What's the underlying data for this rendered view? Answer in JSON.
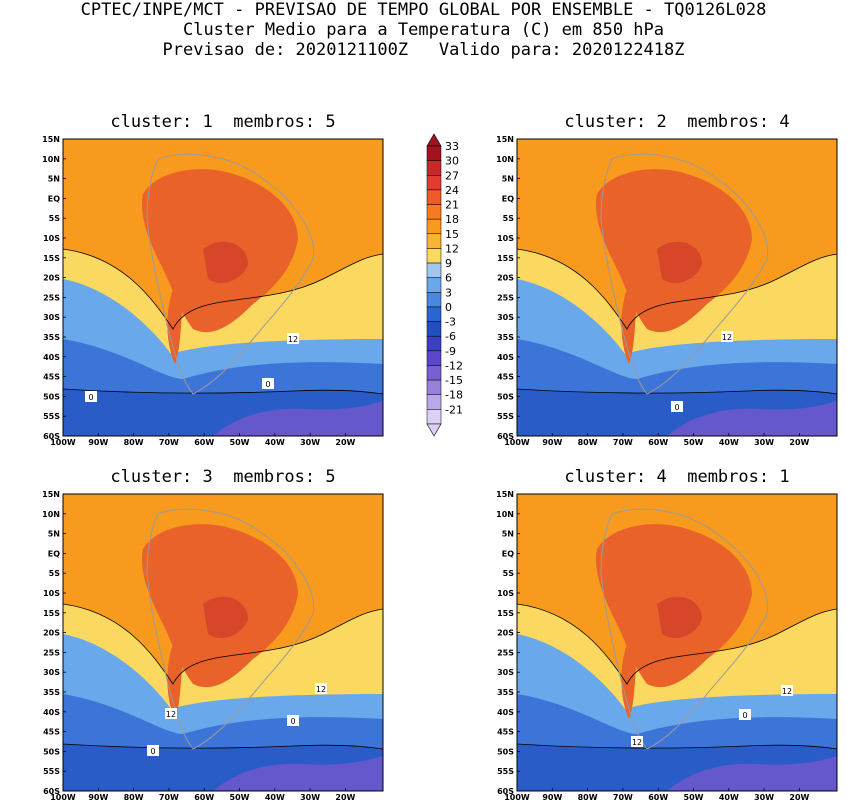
{
  "header": {
    "line1": "CPTEC/INPE/MCT - PREVISAO DE TEMPO GLOBAL POR ENSEMBLE - TQ0126L028",
    "line2": "Cluster Medio para a Temperatura (C) em 850 hPa",
    "line3": "Previsao de: 2020121100Z   Valido para: 2020122418Z"
  },
  "panels": [
    {
      "title": "cluster: 1  membros: 5",
      "contour_labels": [
        "12",
        "0",
        "0"
      ]
    },
    {
      "title": "cluster: 2  membros: 4",
      "contour_labels": [
        "12",
        "0"
      ]
    },
    {
      "title": "cluster: 3  membros: 5",
      "contour_labels": [
        "12",
        "12",
        "0",
        "0"
      ]
    },
    {
      "title": "cluster: 4  membros: 1",
      "contour_labels": [
        "12",
        "12",
        "0"
      ]
    }
  ],
  "axes": {
    "lat_ticks": [
      "15N",
      "10N",
      "5N",
      "EQ",
      "5S",
      "10S",
      "15S",
      "20S",
      "25S",
      "30S",
      "35S",
      "40S",
      "45S",
      "50S",
      "55S",
      "60S"
    ],
    "lon_ticks": [
      "100W",
      "90W",
      "80W",
      "70W",
      "60W",
      "50W",
      "40W",
      "30W",
      "20W"
    ]
  },
  "colorbar": {
    "labels": [
      "33",
      "30",
      "27",
      "24",
      "21",
      "18",
      "15",
      "12",
      "9",
      "6",
      "3",
      "0",
      "-3",
      "-6",
      "-9",
      "-12",
      "-15",
      "-18",
      "-21"
    ],
    "colors": [
      "#a0141e",
      "#c8282a",
      "#e03c30",
      "#f05a28",
      "#f57a20",
      "#f79a1e",
      "#f9b430",
      "#fbd860",
      "#9ec8f0",
      "#6aa8ec",
      "#4a88e0",
      "#2a66d0",
      "#2050c0",
      "#3a40c0",
      "#5a48c8",
      "#7860d0",
      "#9880dc",
      "#b8a8e8",
      "#dcd0f4"
    ]
  },
  "colors": {
    "deep_orange": "#e8622a",
    "orange": "#f79a1e",
    "light_orange": "#f9b430",
    "yellow": "#fbd860",
    "light_blue": "#6aa8ec",
    "blue": "#3c74d8",
    "dark_blue": "#2050c0",
    "violet": "#6458cc"
  }
}
